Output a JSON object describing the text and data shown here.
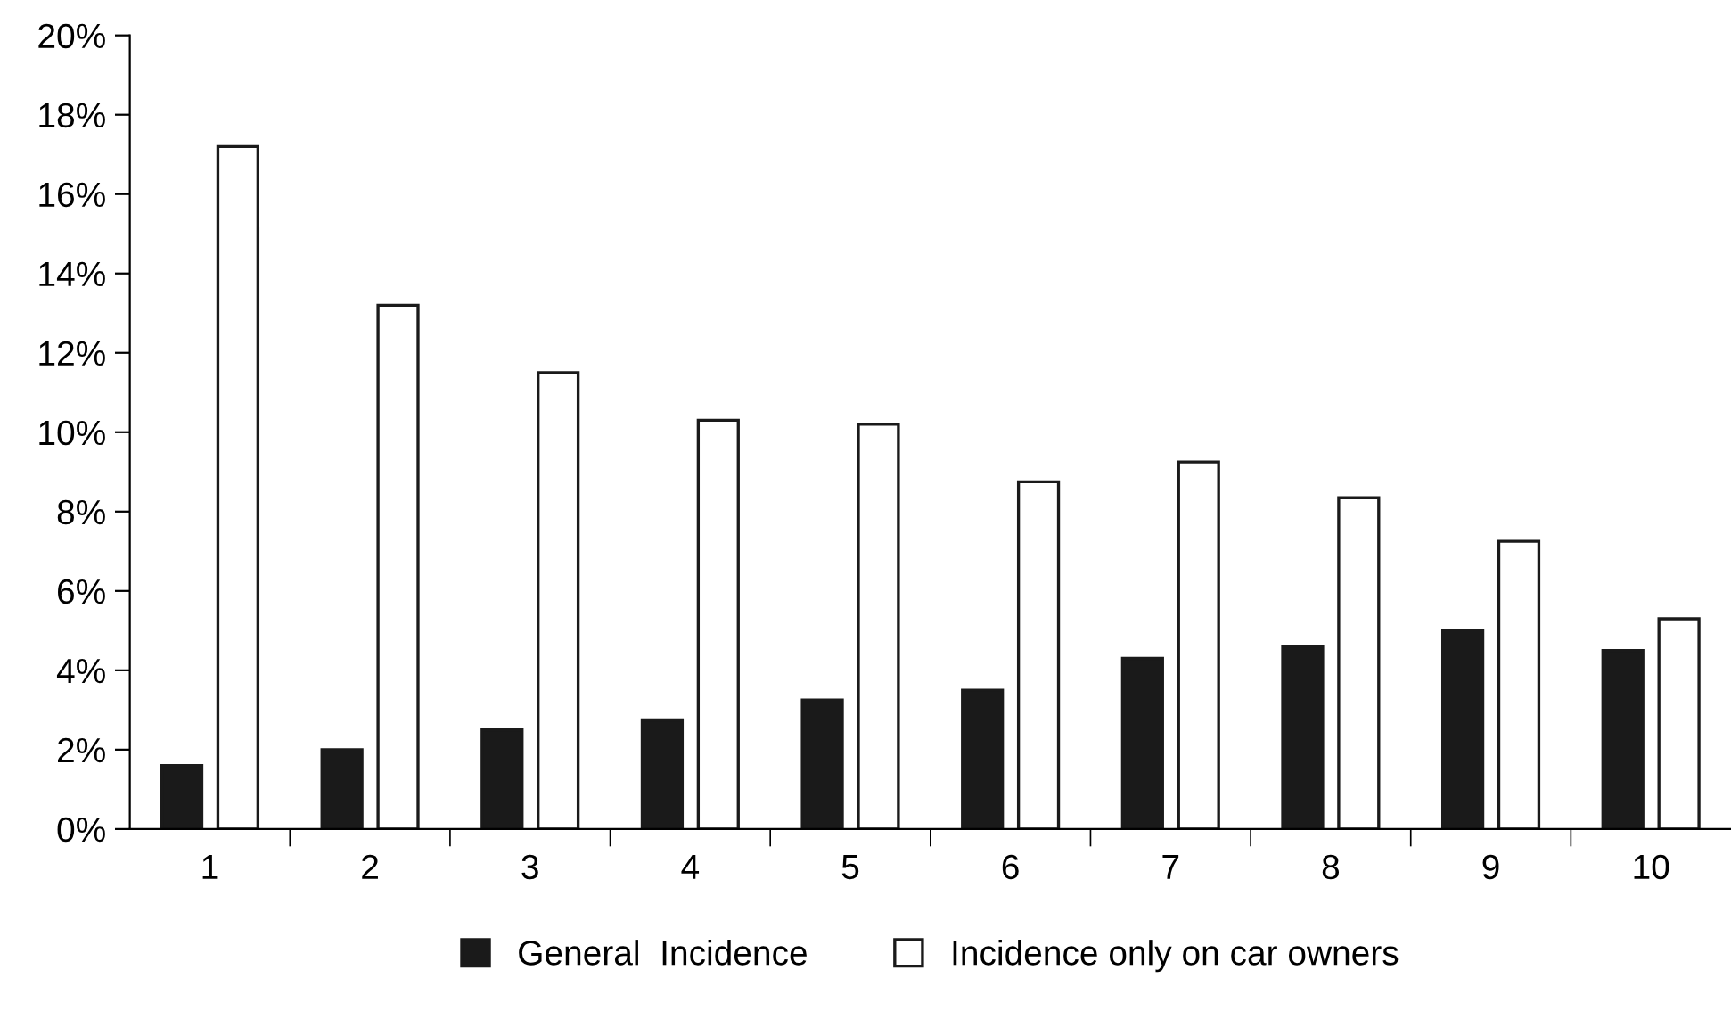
{
  "chart_data": {
    "type": "bar",
    "categories": [
      "1",
      "2",
      "3",
      "4",
      "5",
      "6",
      "7",
      "8",
      "9",
      "10"
    ],
    "series": [
      {
        "name": "General  Incidence",
        "color": "#1a1a1a",
        "values": [
          1.6,
          2.0,
          2.5,
          2.75,
          3.25,
          3.5,
          4.3,
          4.6,
          5.0,
          4.5
        ]
      },
      {
        "name": "Incidence only on car owners",
        "color": "#ffffff",
        "values": [
          17.2,
          13.2,
          11.5,
          10.3,
          10.2,
          8.75,
          9.25,
          8.35,
          7.25,
          5.3
        ]
      }
    ],
    "ylim": [
      0,
      20
    ],
    "yticks": [
      {
        "value": 0,
        "label": "0%"
      },
      {
        "value": 2,
        "label": "2%"
      },
      {
        "value": 4,
        "label": "4%"
      },
      {
        "value": 6,
        "label": "6%"
      },
      {
        "value": 8,
        "label": "8%"
      },
      {
        "value": 10,
        "label": "10%"
      },
      {
        "value": 12,
        "label": "12%"
      },
      {
        "value": 14,
        "label": "14%"
      },
      {
        "value": 16,
        "label": "16%"
      },
      {
        "value": 18,
        "label": "18%"
      },
      {
        "value": 20,
        "label": "20%"
      }
    ],
    "grid": false,
    "legend": "bottom"
  }
}
